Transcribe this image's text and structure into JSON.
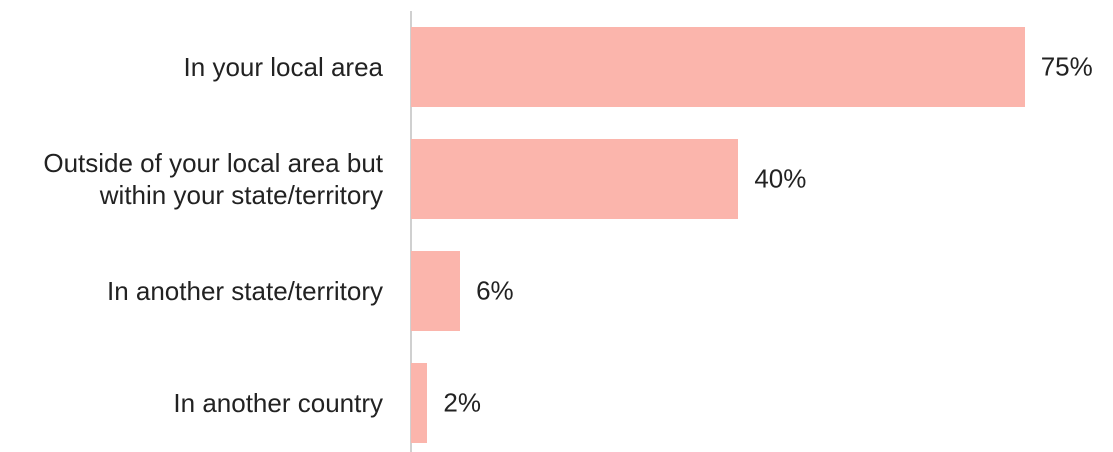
{
  "chart_data": {
    "type": "hbar",
    "categories": [
      "In your local area",
      "Outside of your local area but within your state/territory",
      "In another state/territory",
      "In another country"
    ],
    "values": [
      75,
      40,
      6,
      2
    ],
    "value_labels": [
      "75%",
      "40%",
      "6%",
      "2%"
    ],
    "color": "#fbb5ac",
    "xlim": [
      0,
      84.2
    ]
  }
}
